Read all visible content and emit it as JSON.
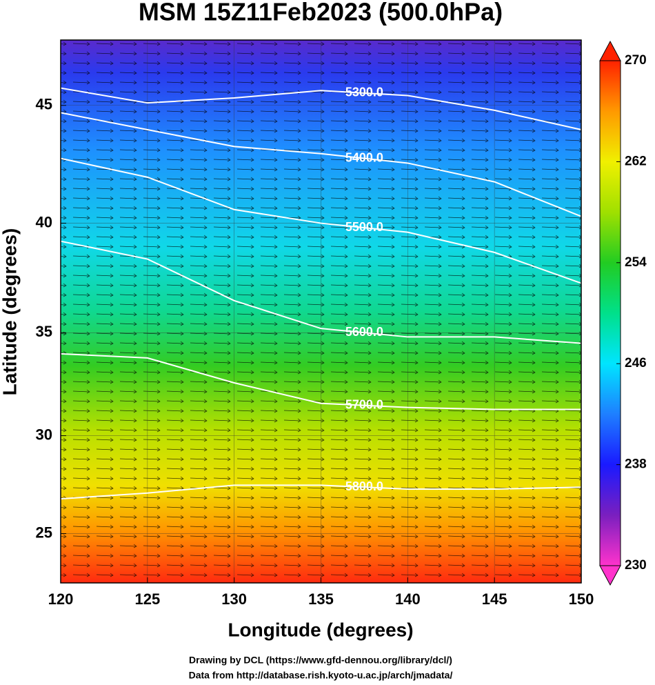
{
  "chart_data": {
    "type": "map",
    "title": "MSM 15Z11Feb2023 (500.0hPa)",
    "xlabel": "Longitude (degrees)",
    "ylabel": "Latitude  (degrees)",
    "projection": "mercator",
    "xlim": [
      120,
      150
    ],
    "xticks": [
      120,
      125,
      130,
      135,
      140,
      145,
      150
    ],
    "ylim": [
      22.4,
      47.6
    ],
    "yticks": [
      25,
      30,
      35,
      40,
      45
    ],
    "grid": true,
    "contour_lon": [
      120,
      125,
      130,
      135,
      140,
      145,
      150
    ],
    "contours": [
      {
        "level": {
          "value": 5300,
          "label": "5300.0"
        },
        "lat": [
          45.7,
          45.1,
          45.3,
          45.6,
          45.4,
          44.8,
          44.0
        ]
      },
      {
        "level": {
          "value": 5400,
          "label": "5400.0"
        },
        "lat": [
          44.7,
          44.0,
          43.3,
          43.0,
          42.6,
          41.8,
          40.3
        ]
      },
      {
        "level": {
          "value": 5500,
          "label": "5500.0"
        },
        "lat": [
          42.8,
          42.0,
          40.6,
          40.0,
          39.6,
          38.7,
          37.3
        ]
      },
      {
        "level": {
          "value": 5600,
          "label": "5600.0"
        },
        "lat": [
          39.2,
          38.4,
          36.5,
          35.2,
          34.8,
          34.8,
          34.5
        ]
      },
      {
        "level": {
          "value": 5700,
          "label": "5700.0"
        },
        "lat": [
          34.0,
          33.8,
          32.6,
          31.6,
          31.4,
          31.3,
          31.3
        ]
      },
      {
        "level": {
          "value": 5800,
          "label": "5800.0"
        },
        "lat": [
          26.8,
          27.1,
          27.5,
          27.5,
          27.3,
          27.3,
          27.4
        ]
      }
    ],
    "colorbar": {
      "lim": [
        230,
        270
      ],
      "ticks": [
        230,
        238,
        246,
        254,
        262,
        270
      ],
      "colors": [
        "#ff33cc",
        "#7a1fbf",
        "#1a1aff",
        "#1e7fff",
        "#00e5ff",
        "#00e08a",
        "#22cc22",
        "#a0e000",
        "#f0f000",
        "#ff9900",
        "#ff2200"
      ]
    },
    "credits": [
      "Drawing by DCL (https://www.gfd-dennou.org/library/dcl/)",
      "Data from http://database.rish.kyoto-u.ac.jp/arch/jmadata/"
    ]
  }
}
